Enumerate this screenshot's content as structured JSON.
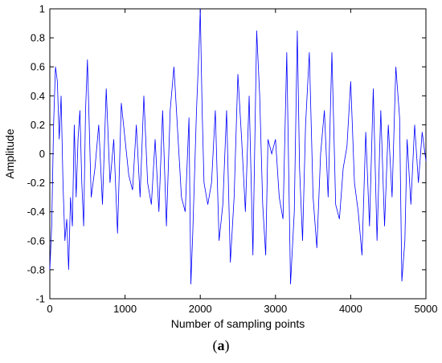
{
  "figure": {
    "caption_open": "(",
    "caption_letter": "a",
    "caption_close": ")"
  },
  "chart_data": {
    "type": "line",
    "title": "",
    "xlabel": "Number of sampling points",
    "ylabel": "Amplitude",
    "xlim": [
      0,
      5000
    ],
    "ylim": [
      -1,
      1
    ],
    "xticks": [
      0,
      1000,
      2000,
      3000,
      4000,
      5000
    ],
    "xtick_labels": [
      "0",
      "1000",
      "2000",
      "3000",
      "4000",
      "5000"
    ],
    "yticks": [
      -1,
      -0.8,
      -0.6,
      -0.4,
      -0.2,
      0,
      0.2,
      0.4,
      0.6,
      0.8,
      1
    ],
    "ytick_labels": [
      "-1",
      "-0.8",
      "-0.6",
      "-0.4",
      "-0.2",
      "0",
      "0.2",
      "0.4",
      "0.6",
      "0.8",
      "1"
    ],
    "grid": false,
    "line_color": "#0000ff",
    "series": [
      {
        "x": [
          0,
          25,
          50,
          75,
          100,
          125,
          150,
          175,
          200,
          225,
          250,
          275,
          300,
          325,
          350,
          375,
          400,
          425,
          450,
          475,
          500,
          550,
          600,
          650,
          700,
          750,
          800,
          850,
          900,
          950,
          1000,
          1050,
          1100,
          1150,
          1200,
          1250,
          1300,
          1350,
          1400,
          1450,
          1500,
          1550,
          1600,
          1650,
          1700,
          1750,
          1800,
          1850,
          1875,
          1900,
          1950,
          1985,
          2000,
          2025,
          2050,
          2100,
          2150,
          2200,
          2250,
          2300,
          2350,
          2400,
          2450,
          2500,
          2550,
          2600,
          2650,
          2700,
          2750,
          2790,
          2830,
          2870,
          2900,
          2950,
          3000,
          3050,
          3100,
          3150,
          3200,
          3250,
          3290,
          3320,
          3360,
          3400,
          3450,
          3500,
          3550,
          3600,
          3650,
          3700,
          3750,
          3800,
          3850,
          3900,
          3950,
          4000,
          4050,
          4100,
          4150,
          4200,
          4250,
          4300,
          4350,
          4400,
          4450,
          4500,
          4550,
          4600,
          4650,
          4680,
          4720,
          4750,
          4800,
          4850,
          4900,
          4950,
          5000
        ],
        "y": [
          -0.8,
          -0.5,
          0.2,
          0.6,
          0.5,
          0.1,
          0.4,
          -0.2,
          -0.6,
          -0.45,
          -0.8,
          -0.3,
          -0.5,
          0.2,
          -0.3,
          0.1,
          0.3,
          -0.2,
          -0.5,
          0.3,
          0.65,
          -0.3,
          -0.1,
          0.2,
          -0.35,
          0.45,
          -0.2,
          0.1,
          -0.55,
          0.35,
          0.1,
          -0.15,
          -0.25,
          0.2,
          -0.3,
          0.4,
          -0.2,
          -0.35,
          0.1,
          -0.4,
          0.3,
          -0.5,
          0.3,
          0.6,
          0.15,
          -0.3,
          -0.4,
          0.25,
          -0.9,
          -0.55,
          0.3,
          0.75,
          1.0,
          0.3,
          -0.2,
          -0.35,
          -0.2,
          0.3,
          -0.6,
          -0.35,
          0.3,
          -0.75,
          -0.3,
          0.55,
          0.1,
          -0.4,
          0.4,
          -0.7,
          0.85,
          0.4,
          -0.35,
          -0.7,
          0.1,
          0.0,
          0.1,
          -0.3,
          -0.45,
          0.7,
          -0.9,
          -0.4,
          0.85,
          -0.1,
          -0.6,
          0.2,
          0.7,
          -0.3,
          -0.65,
          0.0,
          0.3,
          -0.3,
          0.7,
          -0.35,
          -0.45,
          -0.1,
          0.05,
          0.5,
          -0.2,
          -0.4,
          -0.7,
          0.15,
          -0.5,
          0.45,
          -0.6,
          0.3,
          -0.5,
          0.2,
          -0.3,
          0.6,
          0.25,
          -0.88,
          -0.6,
          0.1,
          -0.35,
          0.2,
          -0.2,
          0.15,
          -0.05
        ]
      }
    ]
  }
}
